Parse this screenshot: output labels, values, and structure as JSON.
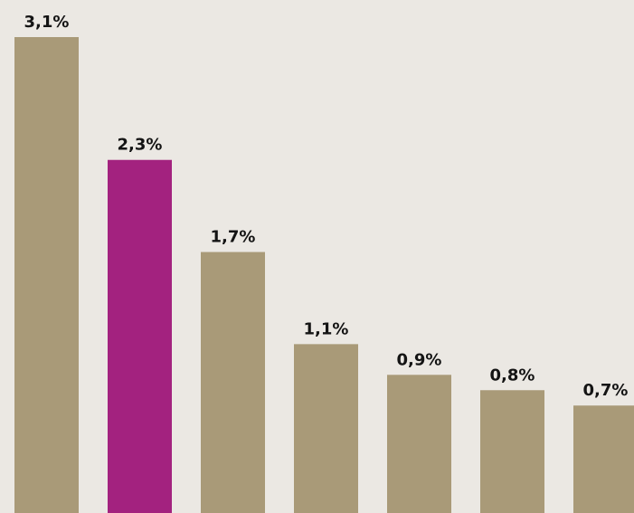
{
  "chart_data": {
    "type": "bar",
    "title": "",
    "xlabel": "",
    "ylabel": "",
    "values": [
      3.1,
      2.3,
      1.7,
      1.1,
      0.9,
      0.8,
      0.7
    ],
    "value_labels": [
      "3,1%",
      "2,3%",
      "1,7%",
      "1,1%",
      "0,9%",
      "0,8%",
      "0,7%"
    ],
    "highlight_index": 1,
    "colors": {
      "bar": "#a99a78",
      "highlight": "#a3227f",
      "background": "#ebe8e3",
      "label": "#141414"
    },
    "ylim": [
      0,
      3.1
    ],
    "grid": false,
    "legend": "none"
  }
}
